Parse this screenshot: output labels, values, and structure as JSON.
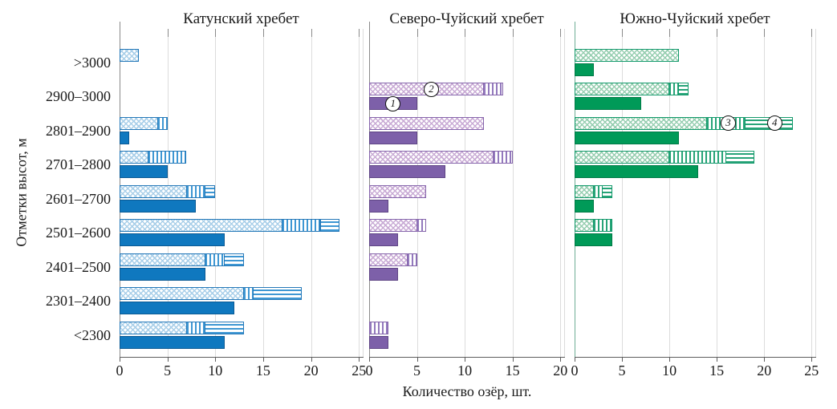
{
  "figure": {
    "xlabel": "Количество озёр, шт.",
    "ylabel": "Отметки высот, м"
  },
  "chart_data": {
    "type": "bar",
    "orientation": "horizontal",
    "grid": true,
    "xlabel": "Количество озёр, шт.",
    "ylabel": "Отметки высот, м",
    "categories": [
      ">3000",
      "2900–3000",
      "2801–2900",
      "2701–2800",
      "2601–2700",
      "2501–2600",
      "2401–2500",
      "2301–2400",
      "<2300"
    ],
    "series_note": "Each elevation band has two bars: lower bar = solid series 1; upper bar = stacked segments of series 2 (crosshatch), 3 (vertical stripes), 4 (horizontal stripes). Circled numbers 1–4 on the chart mark these series.",
    "panels": [
      {
        "title": "Катунский хребет",
        "xlim": [
          0,
          25
        ],
        "xticks": [
          0,
          5,
          10,
          15,
          20,
          25
        ],
        "colors": {
          "solid": "#0f78bf",
          "solid_border": "#0a5a94",
          "pattern_light": "#a9cfe9",
          "pattern_stripe": "#3e97d3",
          "bar_border": "#2478b8",
          "axis": "#8a8a8a"
        },
        "series": [
          {
            "id": "1",
            "pattern": "solid",
            "values": [
              0,
              0,
              1,
              5,
              8,
              11,
              9,
              12,
              11
            ]
          },
          {
            "id": "2",
            "pattern": "crosshatch",
            "values": [
              2,
              0,
              4,
              3,
              7,
              17,
              9,
              13,
              7
            ]
          },
          {
            "id": "3",
            "pattern": "vertical-stripes",
            "values": [
              0,
              0,
              1,
              4,
              2,
              4,
              2,
              1,
              2
            ]
          },
          {
            "id": "4",
            "pattern": "horizontal-stripes",
            "values": [
              0,
              0,
              0,
              0,
              1,
              2,
              2,
              5,
              4
            ]
          }
        ]
      },
      {
        "title": "Северо-Чуйский хребет",
        "xlim": [
          0,
          20
        ],
        "xticks": [
          0,
          5,
          10,
          15,
          20
        ],
        "colors": {
          "solid": "#7d60a9",
          "solid_border": "#5f4585",
          "pattern_light": "#c9abd5",
          "pattern_stripe": "#9379bd",
          "bar_border": "#8565ab",
          "axis": "#8a8a8a"
        },
        "series": [
          {
            "id": "1",
            "pattern": "solid",
            "values": [
              0,
              5,
              5,
              8,
              2,
              3,
              3,
              0,
              2
            ]
          },
          {
            "id": "2",
            "pattern": "crosshatch",
            "values": [
              0,
              12,
              12,
              13,
              6,
              5,
              4,
              0,
              0
            ]
          },
          {
            "id": "3",
            "pattern": "vertical-stripes",
            "values": [
              0,
              2,
              0,
              2,
              0,
              1,
              1,
              0,
              2
            ]
          },
          {
            "id": "4",
            "pattern": "horizontal-stripes",
            "values": [
              0,
              0,
              0,
              0,
              0,
              0,
              0,
              0,
              0
            ]
          }
        ]
      },
      {
        "title": "Южно-Чуйский хребет",
        "xlim": [
          0,
          25
        ],
        "xticks": [
          0,
          5,
          10,
          15,
          20,
          25
        ],
        "colors": {
          "solid": "#009a58",
          "solid_border": "#007a46",
          "pattern_light": "#96ceb0",
          "pattern_stripe": "#27a478",
          "bar_border": "#12996b",
          "axis": "#6fae96"
        },
        "series": [
          {
            "id": "1",
            "pattern": "solid",
            "values": [
              2,
              7,
              11,
              13,
              2,
              4,
              0,
              0,
              0
            ]
          },
          {
            "id": "2",
            "pattern": "crosshatch",
            "values": [
              11,
              10,
              14,
              10,
              2,
              2,
              0,
              0,
              0
            ]
          },
          {
            "id": "3",
            "pattern": "vertical-stripes",
            "values": [
              0,
              1,
              4,
              6,
              1,
              2,
              0,
              0,
              0
            ]
          },
          {
            "id": "4",
            "pattern": "horizontal-stripes",
            "values": [
              0,
              1,
              5,
              3,
              1,
              0,
              0,
              0,
              0
            ]
          }
        ]
      }
    ],
    "annotations": [
      {
        "label": "1",
        "panel": 1,
        "row": 1,
        "x": 2.5,
        "bar": "solid"
      },
      {
        "label": "2",
        "panel": 1,
        "row": 1,
        "x": 6.5,
        "bar": "patterned"
      },
      {
        "label": "3",
        "panel": 2,
        "row": 2,
        "x": 16.2,
        "bar": "patterned"
      },
      {
        "label": "4",
        "panel": 2,
        "row": 2,
        "x": 21.1,
        "bar": "patterned"
      }
    ]
  }
}
